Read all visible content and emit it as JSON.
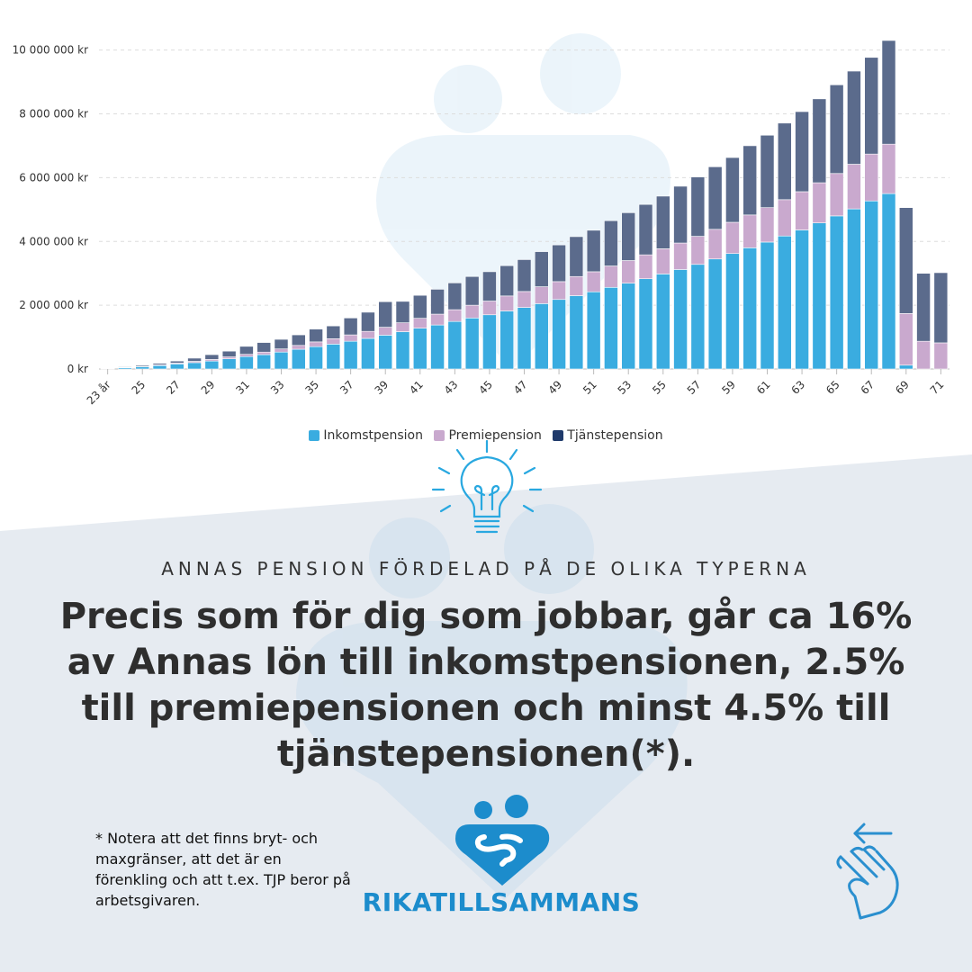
{
  "chart_data": {
    "type": "bar",
    "stacked": true,
    "categories": [
      "23 år",
      "24",
      "25",
      "26",
      "27",
      "28",
      "29",
      "30",
      "31",
      "32",
      "33",
      "34",
      "35",
      "36",
      "37",
      "38",
      "39",
      "40",
      "41",
      "42",
      "43",
      "44",
      "45",
      "46",
      "47",
      "48",
      "49",
      "50",
      "51",
      "52",
      "53",
      "54",
      "55",
      "56",
      "57",
      "58",
      "59",
      "60",
      "61",
      "62",
      "63",
      "64",
      "65",
      "66",
      "67",
      "68",
      "69",
      "70",
      "71"
    ],
    "tick_labels": [
      "23 år",
      "25",
      "27",
      "29",
      "31",
      "33",
      "35",
      "37",
      "39",
      "41",
      "43",
      "45",
      "47",
      "49",
      "51",
      "53",
      "55",
      "57",
      "59",
      "61",
      "63",
      "65",
      "67",
      "69",
      "71"
    ],
    "series": [
      {
        "name": "Inkomstpension",
        "color": "#3aace0",
        "values": [
          10000,
          40000,
          70000,
          110000,
          160000,
          200000,
          250000,
          320000,
          390000,
          450000,
          530000,
          620000,
          700000,
          780000,
          870000,
          960000,
          1060000,
          1170000,
          1280000,
          1380000,
          1490000,
          1600000,
          1700000,
          1820000,
          1930000,
          2050000,
          2180000,
          2300000,
          2420000,
          2560000,
          2690000,
          2830000,
          2980000,
          3120000,
          3280000,
          3450000,
          3620000,
          3800000,
          3980000,
          4170000,
          4360000,
          4580000,
          4800000,
          5020000,
          5270000,
          5500000,
          120000,
          0,
          0
        ]
      },
      {
        "name": "Premiepension",
        "color": "#c9a9ce",
        "values": [
          5000,
          10000,
          15000,
          25000,
          30000,
          40000,
          50000,
          60000,
          70000,
          80000,
          100000,
          120000,
          150000,
          170000,
          200000,
          220000,
          250000,
          280000,
          310000,
          340000,
          370000,
          400000,
          430000,
          470000,
          500000,
          530000,
          560000,
          600000,
          630000,
          670000,
          710000,
          750000,
          790000,
          830000,
          880000,
          930000,
          980000,
          1030000,
          1080000,
          1140000,
          1200000,
          1260000,
          1330000,
          1400000,
          1470000,
          1550000,
          1620000,
          870000,
          820000
        ]
      },
      {
        "name": "Tjänstepension",
        "color": "#5b6b8c",
        "values": [
          5000,
          20000,
          35000,
          45000,
          60000,
          100000,
          150000,
          180000,
          250000,
          300000,
          300000,
          330000,
          400000,
          400000,
          530000,
          600000,
          800000,
          670000,
          720000,
          780000,
          840000,
          900000,
          920000,
          950000,
          1000000,
          1100000,
          1150000,
          1250000,
          1300000,
          1420000,
          1500000,
          1580000,
          1650000,
          1780000,
          1860000,
          1960000,
          2030000,
          2170000,
          2270000,
          2400000,
          2510000,
          2630000,
          2780000,
          2920000,
          3030000,
          3250000,
          3320000,
          2130000,
          2200000
        ]
      }
    ],
    "ylim": [
      0,
      10300000
    ],
    "yticks": [
      0,
      2000000,
      4000000,
      6000000,
      8000000,
      10000000
    ],
    "ytick_labels": [
      "0 kr",
      "2 000 000 kr",
      "4 000 000 kr",
      "6 000 000 kr",
      "8 000 000 kr",
      "10 000 000 kr"
    ],
    "grid": true,
    "legend_position": "bottom"
  },
  "colors": {
    "accent": "#1c8ccc",
    "bulb": "#29a8e0",
    "panel": "#e6ebf1"
  },
  "subtitle": "ANNAS PENSION FÖRDELAD PÅ DE OLIKA TYPERNA",
  "headline": "Precis som för dig som jobbar, går ca 16% av Annas lön till inkomstpensionen, 2.5% till premiepensionen och minst 4.5% till tjänstepensionen(*).",
  "note": "* Notera att det finns bryt- och maxgränser, att det är en förenkling och att t.ex. TJP beror på arbetsgivaren.",
  "brand": "RIKATILLSAMMANS",
  "icons": {
    "bulb": "lightbulb-icon",
    "logo": "rikatillsammans-logo",
    "hand": "swipe-left-hand-icon"
  }
}
